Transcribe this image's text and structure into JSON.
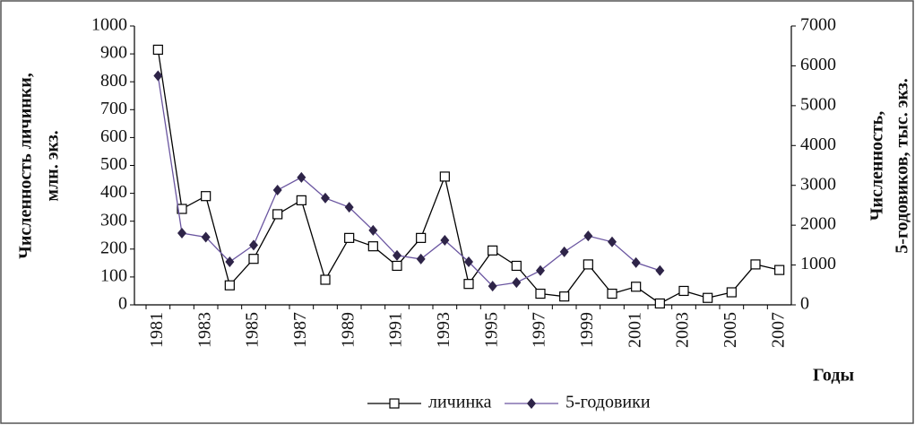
{
  "chart_data": {
    "type": "line",
    "categories": [
      "1981",
      null,
      "1983",
      null,
      "1985",
      null,
      "1987",
      null,
      "1989",
      null,
      "1991",
      null,
      "1993",
      null,
      "1995",
      null,
      "1997",
      null,
      "1999",
      null,
      "2001",
      null,
      "2003",
      null,
      "2005",
      null,
      "2007"
    ],
    "series": [
      {
        "name": "личинка",
        "color": "#000000",
        "marker": "square",
        "marker_fill": "#ffffff",
        "values": [
          915,
          344,
          390,
          70,
          165,
          325,
          375,
          90,
          240,
          210,
          140,
          240,
          460,
          75,
          195,
          140,
          40,
          30,
          145,
          40,
          65,
          5,
          50,
          25,
          45,
          145,
          125
        ]
      },
      {
        "name": "5-годовики",
        "color": "#6a55a0",
        "marker": "diamond",
        "marker_fill": "#2e2448",
        "axis": "y2",
        "values": [
          5750,
          1800,
          1700,
          1080,
          1500,
          2880,
          3200,
          2680,
          2450,
          1870,
          1240,
          1150,
          1620,
          1080,
          470,
          560,
          860,
          1330,
          1730,
          1580,
          1060,
          860,
          null,
          null,
          null,
          null,
          null
        ]
      }
    ],
    "ylabel": [
      "Численность личинки,",
      "млн. экз."
    ],
    "y2label": [
      "Численность,",
      "5-годовиков, тыс. экз."
    ],
    "xlabel": "Годы",
    "ylim": [
      0,
      1000
    ],
    "yticks": [
      0,
      100,
      200,
      300,
      400,
      500,
      600,
      700,
      800,
      900,
      1000
    ],
    "y2lim": [
      0,
      7000
    ],
    "y2ticks": [
      0,
      1000,
      2000,
      3000,
      4000,
      5000,
      6000,
      7000
    ],
    "legend": "bottom"
  }
}
